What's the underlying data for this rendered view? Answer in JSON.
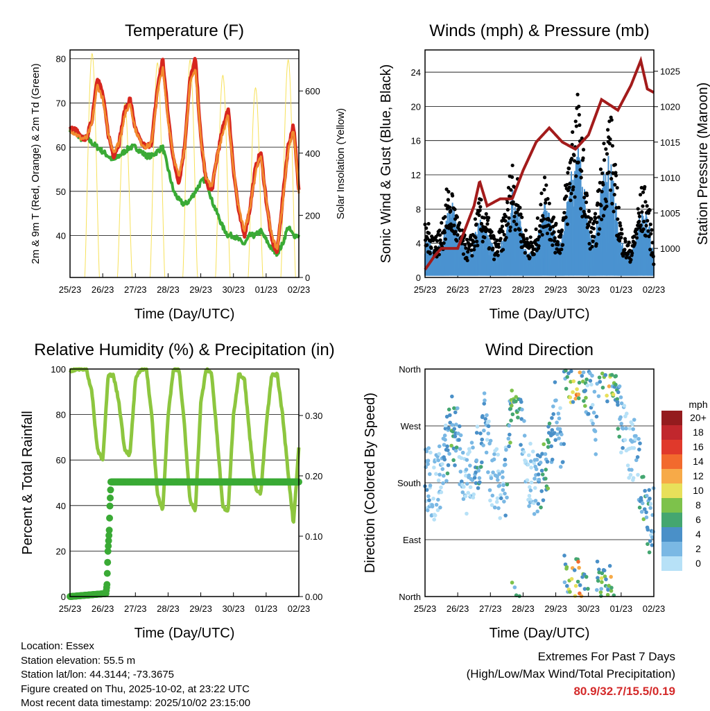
{
  "chart_data": [
    {
      "id": "temperature",
      "type": "line",
      "title": "Temperature (F)",
      "xlabel": "Time (Day/UTC)",
      "ylabel": "2m & 9m T (Red, Orange) & 2m Td (Green)",
      "ylabel_right": "Solar Insolation (Yellow)",
      "xlim": [
        0,
        7
      ],
      "ylim": [
        30.5,
        82
      ],
      "ylim_right": [
        0,
        732
      ],
      "xticks": [
        "25/23",
        "26/23",
        "27/23",
        "28/23",
        "29/23",
        "30/23",
        "01/23",
        "02/23"
      ],
      "yticks": [
        40,
        50,
        60,
        70,
        80
      ],
      "yticks_right": [
        0,
        200,
        400,
        600
      ],
      "x_step_days": 0.1667,
      "series": [
        {
          "name": "2m T",
          "color": "#d7261e",
          "values": [
            64,
            64,
            62,
            62,
            66,
            76,
            72,
            63,
            58,
            61,
            68,
            71,
            64,
            61,
            60,
            61,
            73,
            80,
            67,
            57,
            52,
            60,
            75,
            80,
            62,
            52,
            50,
            58,
            64,
            69,
            55,
            45,
            40,
            46,
            55,
            59,
            48,
            39,
            36,
            48,
            60,
            65,
            50
          ]
        },
        {
          "name": "9m T",
          "color": "#f28a2e",
          "values": [
            64,
            63,
            62,
            62,
            65,
            74,
            71,
            63,
            59,
            61,
            67,
            70,
            64,
            61,
            60,
            61,
            72,
            78,
            66,
            58,
            53,
            60,
            74,
            78,
            62,
            53,
            51,
            58,
            63,
            67,
            55,
            46,
            41,
            46,
            54,
            58,
            48,
            40,
            37,
            47,
            59,
            64,
            50
          ]
        },
        {
          "name": "2m Td",
          "color": "#3aaa35",
          "values": [
            64,
            63,
            62,
            62,
            61,
            60,
            59,
            58,
            57,
            58,
            59,
            60,
            60,
            59,
            58,
            58,
            59,
            60,
            55,
            50,
            48,
            47,
            48,
            50,
            52,
            53,
            48,
            45,
            42,
            40,
            40,
            39,
            38,
            40,
            40,
            41,
            39,
            37,
            36,
            38,
            42,
            40,
            40
          ]
        },
        {
          "name": "Solar Insolation",
          "color": "#f7e15a",
          "daily_peak": [
            720,
            560,
            690,
            700,
            650,
            610,
            700
          ]
        }
      ]
    },
    {
      "id": "winds",
      "type": "scatter",
      "title": "Winds (mph) & Pressure (mb)",
      "xlabel": "Time (Day/UTC)",
      "ylabel": "Sonic Wind & Gust (Blue, Black)",
      "ylabel_right": "Station Pressure (Maroon)",
      "xlim": [
        0,
        7
      ],
      "ylim": [
        0,
        26.6
      ],
      "ylim_right": [
        995.9,
        1028
      ],
      "xticks": [
        "25/23",
        "26/23",
        "27/23",
        "28/23",
        "29/23",
        "30/23",
        "01/23",
        "02/23"
      ],
      "yticks": [
        0,
        4,
        8,
        12,
        16,
        20,
        24
      ],
      "yticks_right": [
        1000,
        1005,
        1010,
        1015,
        1020,
        1025
      ],
      "x_step_days": 0.1667,
      "series": [
        {
          "name": "Sonic Wind",
          "color": "#4b93d0",
          "values": [
            3,
            3,
            2,
            3,
            5,
            6,
            4,
            3,
            2,
            3,
            5,
            4,
            3,
            2,
            3,
            4,
            7,
            6,
            3,
            2,
            2,
            4,
            6,
            5,
            3,
            3,
            6,
            9,
            11,
            8,
            4,
            3,
            6,
            9,
            10,
            6,
            3,
            2,
            2,
            4,
            6,
            5,
            2
          ]
        },
        {
          "name": "Gust",
          "color": "#000000",
          "values": [
            6,
            6,
            5,
            6,
            10,
            10,
            7,
            5,
            4,
            6,
            9,
            8,
            6,
            4,
            6,
            9,
            14,
            11,
            6,
            5,
            4,
            8,
            12,
            9,
            6,
            6,
            12,
            18,
            21,
            15,
            8,
            6,
            11,
            17,
            20,
            12,
            6,
            4,
            4,
            8,
            11,
            9,
            3
          ]
        },
        {
          "name": "Station Pressure",
          "color": "#a31b1b",
          "x": [
            0,
            0.3,
            0.5,
            1.0,
            1.5,
            1.67,
            1.9,
            2.3,
            2.67,
            3.0,
            3.4,
            3.8,
            4.2,
            4.6,
            5.0,
            5.4,
            5.9,
            6.3,
            6.6,
            6.8,
            7.0
          ],
          "values": [
            997,
            999,
            1000,
            1000,
            1006,
            1009.5,
            1006,
            1007,
            1007,
            1011,
            1015,
            1017,
            1015,
            1014,
            1016,
            1021,
            1019.5,
            1023,
            1026.5,
            1022.5,
            1022
          ]
        }
      ]
    },
    {
      "id": "humidity",
      "type": "line",
      "title": "Relative Humidity (%) & Precipitation (in)",
      "xlabel": "Time (Day/UTC)",
      "ylabel": "Percent & Total Rainfall",
      "xlim": [
        0,
        7
      ],
      "ylim": [
        0,
        100
      ],
      "ylim_right": [
        0,
        0.377
      ],
      "xticks": [
        "25/23",
        "26/23",
        "27/23",
        "28/23",
        "29/23",
        "30/23",
        "01/23",
        "02/23"
      ],
      "yticks": [
        0,
        20,
        40,
        60,
        80,
        100
      ],
      "yticks_right": [
        "0.00",
        "0.10",
        "0.20",
        "0.30"
      ],
      "x_step_days": 0.1667,
      "series": [
        {
          "name": "Relative Humidity",
          "color": "#8dc63f",
          "values": [
            99,
            100,
            100,
            100,
            90,
            65,
            60,
            97,
            97,
            85,
            65,
            62,
            95,
            100,
            100,
            80,
            45,
            38,
            80,
            100,
            100,
            75,
            42,
            38,
            85,
            100,
            98,
            70,
            40,
            37,
            80,
            98,
            96,
            70,
            48,
            45,
            75,
            97,
            98,
            80,
            55,
            32,
            66
          ]
        },
        {
          "name": "Total Rainfall",
          "color": "#3aaa35",
          "x": [
            0,
            1.1,
            1.13,
            1.16,
            1.2,
            1.22,
            1.25,
            7.0
          ],
          "values": [
            0,
            0.005,
            0.02,
            0.075,
            0.11,
            0.15,
            0.19,
            0.19
          ]
        }
      ]
    },
    {
      "id": "wind_direction",
      "type": "scatter",
      "title": "Wind Direction",
      "xlabel": "Time (Day/UTC)",
      "ylabel": "Direction (Colored By Speed)",
      "xlim": [
        0,
        7
      ],
      "ylim": [
        0,
        360
      ],
      "xticks": [
        "25/23",
        "26/23",
        "27/23",
        "28/23",
        "29/23",
        "30/23",
        "01/23",
        "02/23"
      ],
      "yticks": [
        "North",
        "East",
        "South",
        "West",
        "North"
      ],
      "x_step_days": 0.1667,
      "direction_deg": [
        200,
        180,
        170,
        190,
        240,
        270,
        250,
        190,
        180,
        200,
        230,
        300,
        200,
        180,
        175,
        185,
        330,
        340,
        260,
        200,
        180,
        185,
        190,
        250,
        300,
        250,
        10,
        355,
        5,
        350,
        330,
        280,
        5,
        355,
        10,
        340,
        270,
        240,
        230,
        220,
        150,
        120,
        130
      ],
      "legend": {
        "title": "mph",
        "labels": [
          "20+",
          "18",
          "16",
          "14",
          "12",
          "10",
          "8",
          "6",
          "4",
          "2",
          "0"
        ],
        "colors": [
          "#941b1e",
          "#c1272d",
          "#e0392b",
          "#f26a2d",
          "#f7aa48",
          "#e8e05a",
          "#7dc24b",
          "#44a670",
          "#4a90c8",
          "#7ab8e4",
          "#b7e1f7"
        ]
      }
    }
  ],
  "footer": {
    "location": "Location: Essex",
    "elevation": "Station elevation: 55.5 m",
    "latlon": "Station lat/lon: 44.3144; -73.3675",
    "created": "Figure created on Thu, 2025-10-02, at 23:22 UTC",
    "recent": "Most recent data timestamp: 2025/10/02 23:15:00"
  },
  "extremes": {
    "title": "Extremes For Past 7 Days",
    "subtitle": "(High/Low/Max Wind/Total Precipitation)",
    "values": "80.9/32.7/15.5/0.19"
  }
}
